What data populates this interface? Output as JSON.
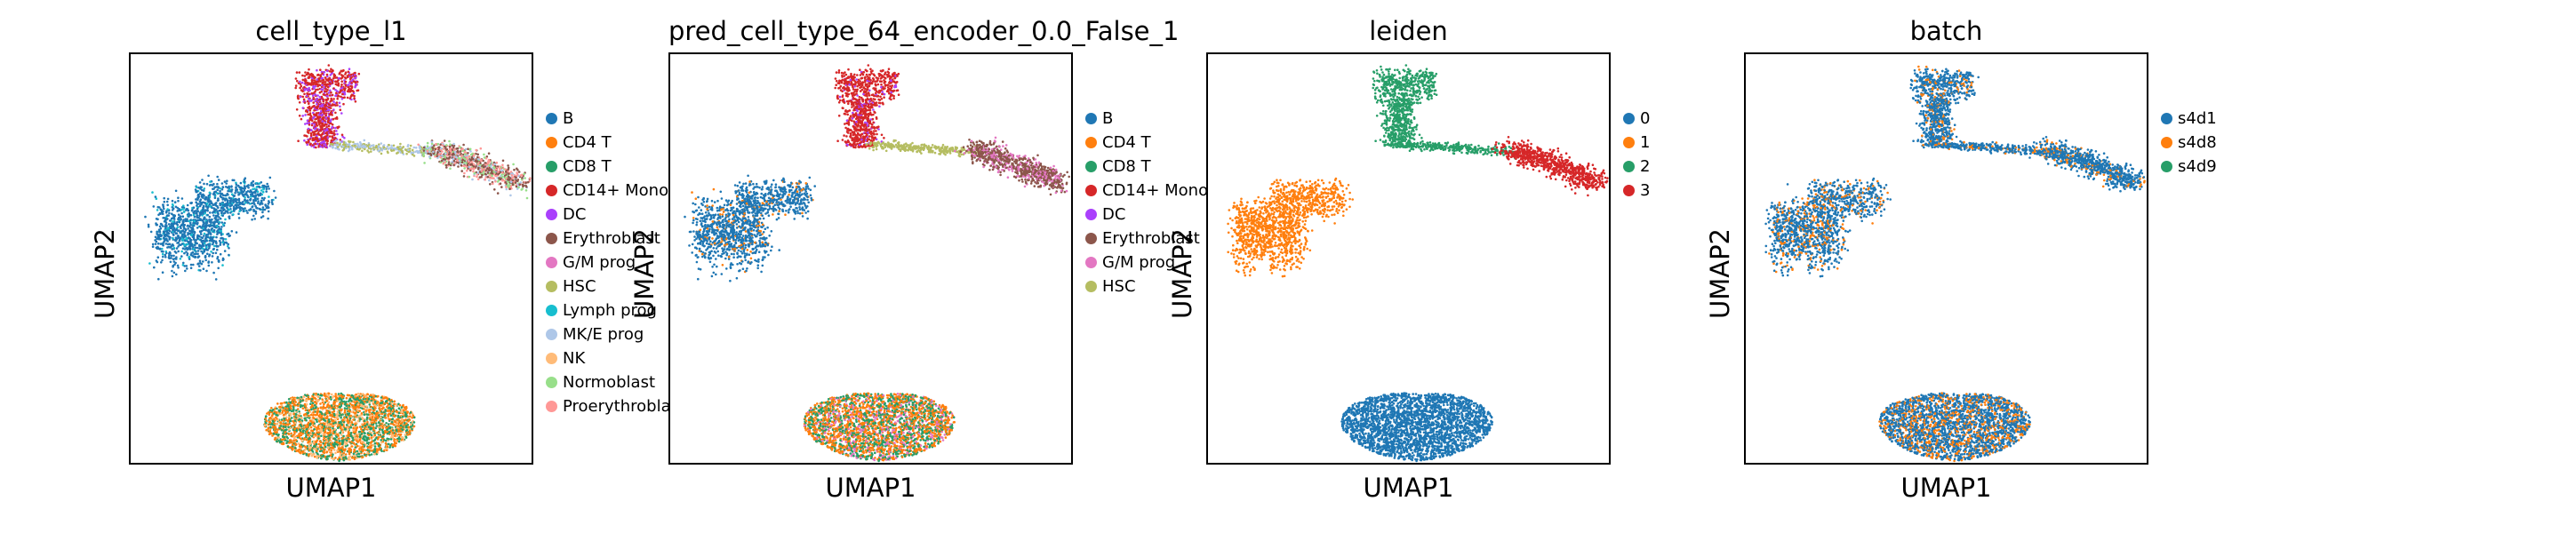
{
  "chart_data": [
    {
      "type": "scatter",
      "title": "cell_type_l1",
      "xlabel": "UMAP1",
      "ylabel": "UMAP2",
      "legend_position": "right",
      "categories": [
        "B",
        "CD4 T",
        "CD8 T",
        "CD14+ Mono",
        "DC",
        "Erythroblast",
        "G/M prog",
        "HSC",
        "Lymph prog",
        "MK/E prog",
        "NK",
        "Normoblast",
        "Proerythroblast"
      ],
      "colors": [
        "#1f77b4",
        "#ff7f0e",
        "#279e68",
        "#d62728",
        "#aa40fc",
        "#8c564b",
        "#e377c2",
        "#b5bd61",
        "#17becf",
        "#aec7e8",
        "#ffbb78",
        "#98df8a",
        "#ff9896"
      ],
      "clusters": [
        {
          "region": "b-blob",
          "mix": [
            [
              0,
              0.88
            ],
            [
              8,
              0.12
            ]
          ]
        },
        {
          "region": "bottom-blob",
          "mix": [
            [
              1,
              0.42
            ],
            [
              2,
              0.38
            ],
            [
              10,
              0.2
            ]
          ]
        },
        {
          "region": "top-stem",
          "mix": [
            [
              3,
              0.7
            ],
            [
              4,
              0.3
            ]
          ]
        },
        {
          "region": "bridge",
          "mix": [
            [
              7,
              0.5
            ],
            [
              9,
              0.5
            ]
          ]
        },
        {
          "region": "right-arm",
          "mix": [
            [
              5,
              0.4
            ],
            [
              12,
              0.3
            ],
            [
              11,
              0.15
            ],
            [
              9,
              0.15
            ]
          ]
        }
      ]
    },
    {
      "type": "scatter",
      "title": "pred_cell_type_64_encoder_0.0_False_1",
      "xlabel": "UMAP1",
      "ylabel": "UMAP2",
      "legend_position": "right",
      "categories": [
        "B",
        "CD4 T",
        "CD8 T",
        "CD14+ Mono",
        "DC",
        "Erythroblast",
        "G/M prog",
        "HSC"
      ],
      "colors": [
        "#1f77b4",
        "#ff7f0e",
        "#279e68",
        "#d62728",
        "#aa40fc",
        "#8c564b",
        "#e377c2",
        "#b5bd61"
      ],
      "clusters": [
        {
          "region": "b-blob",
          "mix": [
            [
              0,
              0.88
            ],
            [
              1,
              0.12
            ]
          ]
        },
        {
          "region": "bottom-blob",
          "mix": [
            [
              1,
              0.45
            ],
            [
              2,
              0.4
            ],
            [
              6,
              0.15
            ]
          ]
        },
        {
          "region": "top-stem",
          "mix": [
            [
              3,
              0.9
            ],
            [
              4,
              0.1
            ]
          ]
        },
        {
          "region": "bridge",
          "mix": [
            [
              7,
              1.0
            ]
          ]
        },
        {
          "region": "right-arm",
          "mix": [
            [
              5,
              0.7
            ],
            [
              6,
              0.3
            ]
          ]
        }
      ]
    },
    {
      "type": "scatter",
      "title": "leiden",
      "xlabel": "UMAP1",
      "ylabel": "UMAP2",
      "legend_position": "right",
      "categories": [
        "0",
        "1",
        "2",
        "3"
      ],
      "colors": [
        "#1f77b4",
        "#ff7f0e",
        "#279e68",
        "#d62728"
      ],
      "clusters": [
        {
          "region": "b-blob",
          "mix": [
            [
              1,
              1.0
            ]
          ]
        },
        {
          "region": "bottom-blob",
          "mix": [
            [
              0,
              1.0
            ]
          ]
        },
        {
          "region": "top-stem",
          "mix": [
            [
              2,
              1.0
            ]
          ]
        },
        {
          "region": "bridge",
          "mix": [
            [
              2,
              1.0
            ]
          ]
        },
        {
          "region": "right-arm",
          "mix": [
            [
              3,
              1.0
            ]
          ]
        }
      ]
    },
    {
      "type": "scatter",
      "title": "batch",
      "xlabel": "UMAP1",
      "ylabel": "UMAP2",
      "legend_position": "right",
      "categories": [
        "s4d1",
        "s4d8",
        "s4d9"
      ],
      "colors": [
        "#1f77b4",
        "#ff7f0e",
        "#279e68"
      ],
      "clusters": [
        {
          "region": "b-blob",
          "mix": [
            [
              0,
              0.8
            ],
            [
              1,
              0.2
            ]
          ]
        },
        {
          "region": "bottom-blob",
          "mix": [
            [
              0,
              0.7
            ],
            [
              1,
              0.3
            ]
          ]
        },
        {
          "region": "top-stem",
          "mix": [
            [
              0,
              0.85
            ],
            [
              1,
              0.15
            ]
          ]
        },
        {
          "region": "bridge",
          "mix": [
            [
              0,
              0.85
            ],
            [
              1,
              0.15
            ]
          ]
        },
        {
          "region": "right-arm",
          "mix": [
            [
              0,
              0.85
            ],
            [
              1,
              0.15
            ]
          ]
        }
      ]
    }
  ]
}
